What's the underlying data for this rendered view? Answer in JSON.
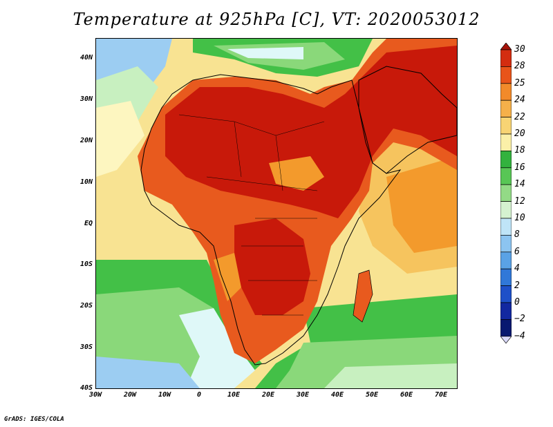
{
  "title": "Temperature at 925hPa [C], VT: 2020053012",
  "credit": "GrADS: IGES/COLA",
  "map": {
    "lat_labels": [
      "40N",
      "30N",
      "20N",
      "10N",
      "EQ",
      "10S",
      "20S",
      "30S",
      "40S"
    ],
    "lon_labels": [
      "30W",
      "20W",
      "10W",
      "0",
      "10E",
      "20E",
      "30E",
      "40E",
      "50E",
      "60E",
      "70E"
    ],
    "lat_range": [
      -40,
      45
    ],
    "lon_range": [
      -30,
      75
    ],
    "colors": {
      "hot": "#c8190a",
      "warm": "#e85a1e",
      "orange": "#f39a2c",
      "amber": "#f6c45e",
      "pale": "#f8e392",
      "lightyellow": "#fdf6c0",
      "green": "#43c047",
      "lightgreen": "#8ad87a",
      "palegreen": "#c8f0c0",
      "cyan": "#dff8f8",
      "lightblue": "#9ccdf2",
      "blue": "#5fa3e6"
    }
  },
  "colorbar": {
    "labels": [
      "30",
      "28",
      "25",
      "24",
      "22",
      "20",
      "18",
      "16",
      "14",
      "12",
      "10",
      "8",
      "6",
      "4",
      "2",
      "0",
      "−2",
      "−4"
    ],
    "colors": [
      "#a7140a",
      "#d32d10",
      "#e8541a",
      "#f28a2a",
      "#f5b04a",
      "#f8d474",
      "#fbf0a8",
      "#33b23e",
      "#58c655",
      "#93da86",
      "#d5f2d0",
      "#bfe4f7",
      "#8cc4f0",
      "#5aa2e6",
      "#3078d8",
      "#1e50c8",
      "#1228a0",
      "#081870",
      "#08105a"
    ],
    "bottom_color": "#d8d8f8"
  }
}
